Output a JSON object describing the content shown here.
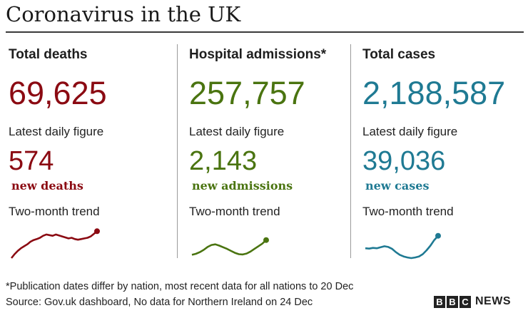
{
  "header": {
    "title": "Coronavirus in the UK"
  },
  "colors": {
    "deaths": "#8b0a12",
    "admissions": "#4a7410",
    "cases": "#1f7a93"
  },
  "columns": [
    {
      "heading": "Total deaths",
      "total": "69,625",
      "daily_label": "Latest daily figure",
      "daily": "574",
      "daily_unit": "new deaths",
      "trend_label": "Two-month trend",
      "trend": [
        0.0,
        0.12,
        0.22,
        0.3,
        0.36,
        0.42,
        0.5,
        0.55,
        0.58,
        0.62,
        0.68,
        0.72,
        0.7,
        0.68,
        0.72,
        0.69,
        0.66,
        0.63,
        0.6,
        0.62,
        0.58,
        0.56,
        0.58,
        0.6,
        0.62,
        0.66,
        0.74,
        0.82
      ]
    },
    {
      "heading": "Hospital admissions*",
      "total": "257,757",
      "daily_label": "Latest daily figure",
      "daily": "2,143",
      "daily_unit": "new admissions",
      "trend_label": "Two-month trend",
      "trend": [
        0.1,
        0.13,
        0.18,
        0.25,
        0.34,
        0.4,
        0.42,
        0.38,
        0.33,
        0.28,
        0.22,
        0.16,
        0.12,
        0.11,
        0.14,
        0.2,
        0.28,
        0.36,
        0.44,
        0.55
      ]
    },
    {
      "heading": "Total cases",
      "total": "2,188,587",
      "daily_label": "Latest daily figure",
      "daily": "39,036",
      "daily_unit": "new cases",
      "trend_label": "Two-month trend",
      "trend": [
        0.3,
        0.29,
        0.31,
        0.3,
        0.33,
        0.36,
        0.34,
        0.28,
        0.18,
        0.1,
        0.05,
        0.02,
        0.0,
        0.02,
        0.05,
        0.12,
        0.24,
        0.38,
        0.55,
        0.68
      ]
    }
  ],
  "footer": {
    "note": "*Publication dates differ by nation, most recent data for all nations to 20 Dec",
    "source": "Source: Gov.uk dashboard, No data for Northern Ireland on 24 Dec",
    "logo_letters": [
      "B",
      "B",
      "C"
    ],
    "logo_word": "NEWS"
  }
}
